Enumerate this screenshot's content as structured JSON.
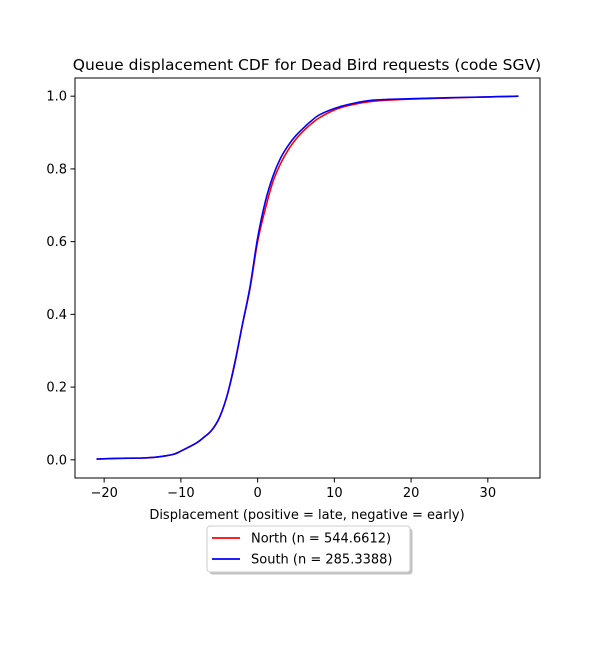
{
  "chart_data": {
    "type": "line",
    "title": "Queue displacement CDF for Dead Bird  requests (code SGV)",
    "xlabel": "Displacement (positive = late, negative = early)",
    "ylabel": "",
    "xlim": [
      -23.8,
      36.8
    ],
    "ylim": [
      -0.05,
      1.05
    ],
    "xticks": [
      -20,
      -10,
      0,
      10,
      20,
      30
    ],
    "yticks": [
      0.0,
      0.2,
      0.4,
      0.6,
      0.8,
      1.0
    ],
    "xtick_labels": [
      "−20",
      "−10",
      "0",
      "10",
      "20",
      "30"
    ],
    "ytick_labels": [
      "0.0",
      "0.2",
      "0.4",
      "0.6",
      "0.8",
      "1.0"
    ],
    "grid": false,
    "legend_position": "bottom-center, below axes",
    "series": [
      {
        "name": "North (n = 544.6612)",
        "color": "#ff0000",
        "x": [
          -21,
          -18,
          -15,
          -13,
          -11,
          -10,
          -8,
          -7,
          -6,
          -5,
          -4,
          -3,
          -2,
          -1,
          0,
          1,
          2,
          3,
          4,
          5,
          6,
          7,
          8,
          10,
          12,
          15,
          20,
          25,
          30,
          34
        ],
        "y": [
          0.002,
          0.004,
          0.005,
          0.008,
          0.015,
          0.024,
          0.046,
          0.062,
          0.081,
          0.115,
          0.175,
          0.265,
          0.37,
          0.47,
          0.6,
          0.69,
          0.765,
          0.815,
          0.853,
          0.882,
          0.905,
          0.924,
          0.94,
          0.962,
          0.975,
          0.986,
          0.992,
          0.995,
          0.998,
          1.0
        ]
      },
      {
        "name": "South (n = 285.3388)",
        "color": "#0000ff",
        "x": [
          -21,
          -18,
          -15,
          -13,
          -11,
          -10,
          -8,
          -7,
          -6,
          -5,
          -4,
          -3,
          -2,
          -1,
          0,
          1,
          2,
          3,
          4,
          5,
          6,
          7,
          8,
          10,
          12,
          15,
          20,
          25,
          30,
          34
        ],
        "y": [
          0.002,
          0.004,
          0.005,
          0.008,
          0.015,
          0.024,
          0.046,
          0.062,
          0.081,
          0.115,
          0.175,
          0.262,
          0.37,
          0.475,
          0.61,
          0.71,
          0.78,
          0.83,
          0.865,
          0.892,
          0.913,
          0.932,
          0.948,
          0.966,
          0.978,
          0.989,
          0.993,
          0.996,
          0.998,
          1.0
        ]
      }
    ]
  }
}
